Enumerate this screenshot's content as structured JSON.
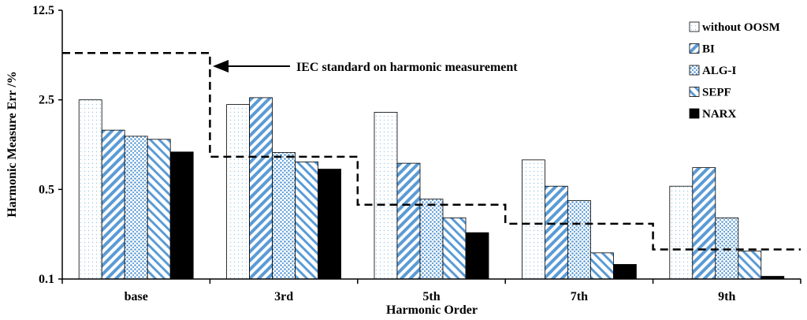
{
  "chart_data": {
    "type": "bar",
    "y_scale": "log",
    "ylim": [
      0.1,
      12.5
    ],
    "yticks": [
      "0.1",
      "0.5",
      "2.5",
      "12.5"
    ],
    "xlabel": "Harmonic Order",
    "ylabel": "Harmonic Measure Err /%",
    "categories": [
      "base",
      "3rd",
      "5th",
      "7th",
      "9th"
    ],
    "series": [
      {
        "name": "without OOSM",
        "color": "#9ecae1",
        "pattern": "dots-fine",
        "values": [
          2.5,
          2.3,
          2.0,
          0.85,
          0.53
        ]
      },
      {
        "name": "BI",
        "color": "#5b9bd5",
        "pattern": "diag-right",
        "values": [
          1.45,
          2.6,
          0.8,
          0.53,
          0.74
        ]
      },
      {
        "name": "ALG-I",
        "color": "#5b9bd5",
        "pattern": "dots",
        "values": [
          1.3,
          0.97,
          0.42,
          0.41,
          0.3
        ]
      },
      {
        "name": "SEPF",
        "color": "#5b9bd5",
        "pattern": "diag-left",
        "values": [
          1.23,
          0.82,
          0.3,
          0.16,
          0.165
        ]
      },
      {
        "name": "NARX",
        "color": "#000000",
        "pattern": "solid",
        "values": [
          0.98,
          0.72,
          0.23,
          0.13,
          0.105
        ]
      }
    ],
    "iec_standard": {
      "label": "IEC standard on harmonic measurement",
      "values": [
        5.8,
        0.9,
        0.38,
        0.27,
        0.17
      ]
    },
    "legend_position": "top-right"
  }
}
